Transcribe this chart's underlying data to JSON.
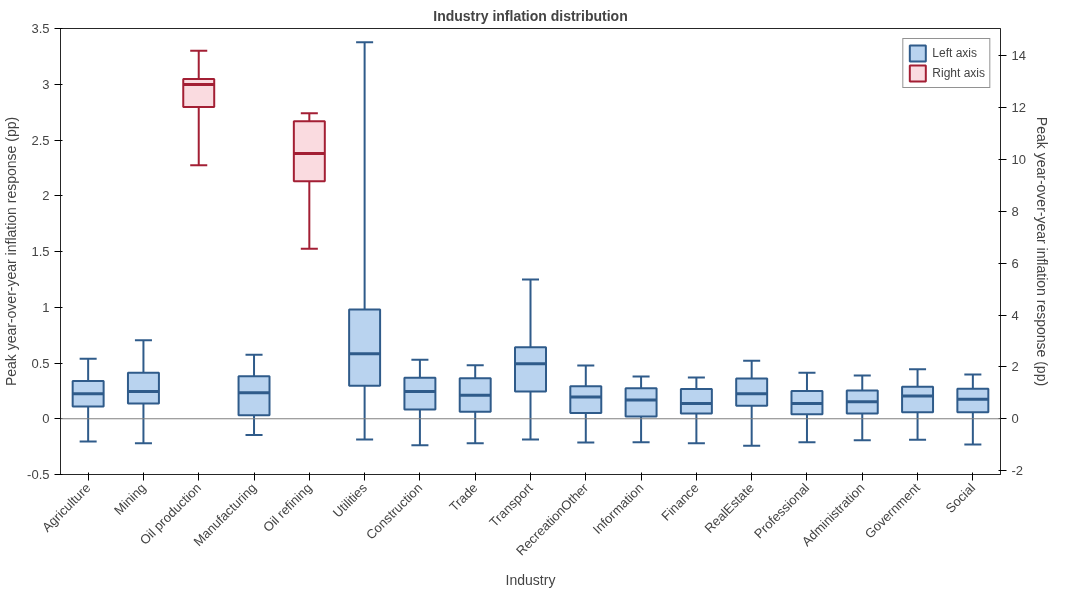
{
  "chart_data": {
    "type": "box",
    "title": "Industry inflation distribution",
    "xlabel": "Industry",
    "ylabel": "Peak year-over-year inflation response (pp)",
    "y2label": "Peak year-over-year inflation response (pp)",
    "categories": [
      "Agriculture",
      "Mining",
      "Oil production",
      "Manufacturing",
      "Oil refining",
      "Utilities",
      "Construction",
      "Trade",
      "Transport",
      "RecreationOther",
      "Information",
      "Finance",
      "RealEstate",
      "Professional",
      "Administration",
      "Government",
      "Social"
    ],
    "series": [
      {
        "name": "Left axis",
        "color": "#2f5b8a",
        "boxes": [
          {
            "low": -0.205,
            "q1": 0.11,
            "median": 0.225,
            "q3": 0.338,
            "high": 0.537
          },
          {
            "low": -0.22,
            "q1": 0.136,
            "median": 0.245,
            "q3": 0.413,
            "high": 0.705
          },
          null,
          {
            "low": -0.145,
            "q1": 0.032,
            "median": 0.234,
            "q3": 0.381,
            "high": 0.575
          },
          null,
          {
            "low": -0.185,
            "q1": 0.297,
            "median": 0.583,
            "q3": 0.979,
            "high": 3.377
          },
          {
            "low": -0.237,
            "q1": 0.084,
            "median": 0.245,
            "q3": 0.367,
            "high": 0.529
          },
          {
            "low": -0.219,
            "q1": 0.063,
            "median": 0.211,
            "q3": 0.364,
            "high": 0.479
          },
          {
            "low": -0.185,
            "q1": 0.245,
            "median": 0.494,
            "q3": 0.641,
            "high": 1.248
          },
          {
            "low": -0.214,
            "q1": 0.052,
            "median": 0.196,
            "q3": 0.292,
            "high": 0.477
          },
          {
            "low": -0.211,
            "q1": 0.02,
            "median": 0.168,
            "q3": 0.274,
            "high": 0.378
          },
          {
            "low": -0.219,
            "q1": 0.046,
            "median": 0.136,
            "q3": 0.266,
            "high": 0.37
          },
          {
            "low": -0.243,
            "q1": 0.116,
            "median": 0.225,
            "q3": 0.361,
            "high": 0.52
          },
          {
            "low": -0.211,
            "q1": 0.04,
            "median": 0.136,
            "q3": 0.248,
            "high": 0.413
          },
          {
            "low": -0.193,
            "q1": 0.046,
            "median": 0.153,
            "q3": 0.254,
            "high": 0.387
          },
          {
            "low": -0.188,
            "q1": 0.058,
            "median": 0.205,
            "q3": 0.286,
            "high": 0.445
          },
          {
            "low": -0.231,
            "q1": 0.058,
            "median": 0.176,
            "q3": 0.269,
            "high": 0.396
          }
        ]
      },
      {
        "name": "Right axis",
        "color": "#a31f34",
        "axis": "y2",
        "boxes": [
          null,
          null,
          {
            "low": 9.78,
            "q1": 12.02,
            "median": 12.89,
            "q3": 13.1,
            "high": 14.19
          },
          null,
          {
            "low": 6.56,
            "q1": 9.16,
            "median": 10.23,
            "q3": 11.47,
            "high": 11.78
          },
          null,
          null,
          null,
          null,
          null,
          null,
          null,
          null,
          null,
          null,
          null,
          null
        ]
      }
    ],
    "ylim": [
      -0.5,
      3.5
    ],
    "yticks": [
      -0.5,
      0,
      0.5,
      1,
      1.5,
      2,
      2.5,
      3,
      3.5
    ],
    "y2lim": [
      -2.15,
      15.05
    ],
    "y2ticks": [
      -2,
      0,
      2,
      4,
      6,
      8,
      10,
      12,
      14
    ],
    "ref_lines": [
      {
        "axis": "y",
        "value": 0,
        "color": "#808080"
      }
    ],
    "legend": "top right",
    "grid": false
  }
}
